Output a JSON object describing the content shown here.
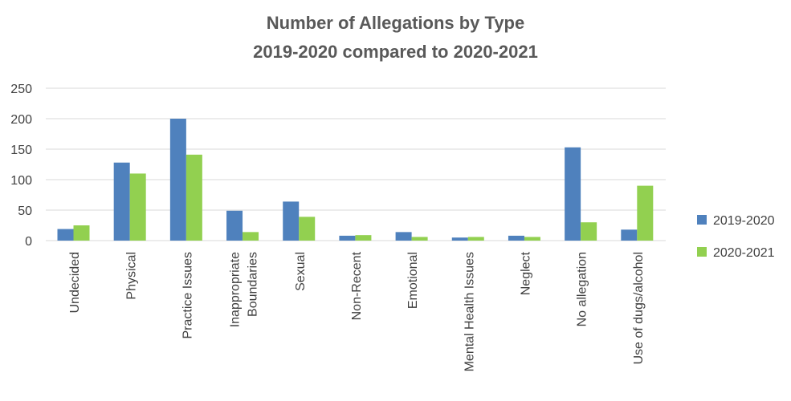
{
  "chart_data": {
    "type": "bar",
    "title": "Number of Allegations by Type",
    "subtitle": "2019-2020 compared to 2020-2021",
    "xlabel": "",
    "ylabel": "",
    "ylim": [
      0,
      250
    ],
    "yticks": [
      0,
      50,
      100,
      150,
      200,
      250
    ],
    "grid": true,
    "legend_position": "right",
    "categories": [
      [
        "Undecided"
      ],
      [
        "Physical"
      ],
      [
        "Practice Issues"
      ],
      [
        "Inappropriate",
        "Boundaries"
      ],
      [
        "Sexual"
      ],
      [
        "Non-Recent"
      ],
      [
        "Emotional"
      ],
      [
        "Mental Health Issues"
      ],
      [
        "Neglect"
      ],
      [
        "No allegation"
      ],
      [
        "Use of dugs/alcohol"
      ]
    ],
    "series": [
      {
        "name": "2019-2020",
        "color": "#4f81bd",
        "values": [
          19,
          128,
          200,
          49,
          64,
          8,
          14,
          5,
          8,
          153,
          18
        ]
      },
      {
        "name": "2020-2021",
        "color": "#92d050",
        "values": [
          25,
          110,
          141,
          14,
          39,
          9,
          6,
          6,
          6,
          30,
          90
        ]
      }
    ]
  }
}
